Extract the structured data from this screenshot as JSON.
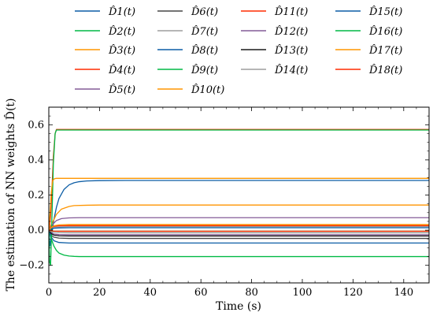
{
  "chart_data": {
    "type": "line",
    "xlabel": "Time (s)",
    "ylabel": "The estimation of NN weights D̂(t)",
    "xlim": [
      0,
      150
    ],
    "ylim": [
      -0.3,
      0.7
    ],
    "xticks": [
      0,
      20,
      40,
      60,
      80,
      100,
      120,
      140
    ],
    "yticks": [
      -0.2,
      0.0,
      0.2,
      0.4,
      0.6
    ],
    "xtick_labels": [
      "0",
      "20",
      "40",
      "60",
      "80",
      "100",
      "120",
      "140"
    ],
    "ytick_labels": [
      "−0.2",
      "0.0",
      "0.2",
      "0.4",
      "0.6"
    ],
    "grid": false,
    "legend_position": "top",
    "series": [
      {
        "name": "D̂1(t)",
        "color": "#0c5da5",
        "x": [
          0,
          0.5,
          1,
          2,
          3,
          4,
          6,
          8,
          10,
          12,
          15,
          20,
          30,
          50,
          150
        ],
        "y": [
          0,
          -0.09,
          -0.04,
          0.06,
          0.13,
          0.18,
          0.232,
          0.258,
          0.27,
          0.276,
          0.28,
          0.282,
          0.283,
          0.283,
          0.283
        ]
      },
      {
        "name": "D̂2(t)",
        "color": "#00b945",
        "x": [
          0,
          1,
          2,
          3,
          4,
          6,
          8,
          10,
          12,
          15,
          20,
          150
        ],
        "y": [
          0,
          -0.05,
          -0.09,
          -0.115,
          -0.13,
          -0.142,
          -0.147,
          -0.149,
          -0.15,
          -0.15,
          -0.15,
          -0.15
        ]
      },
      {
        "name": "D̂3(t)",
        "color": "#ff9500",
        "x": [
          0,
          1,
          2,
          3,
          5,
          8,
          10,
          15,
          20,
          150
        ],
        "y": [
          0,
          0.03,
          0.06,
          0.09,
          0.12,
          0.135,
          0.14,
          0.142,
          0.143,
          0.143
        ]
      },
      {
        "name": "D̂4(t)",
        "color": "#ff2c00",
        "x": [
          0,
          0.3,
          0.7,
          1.2,
          1.8,
          2.5,
          3,
          150
        ],
        "y": [
          0,
          0.02,
          0.08,
          0.22,
          0.42,
          0.55,
          0.573,
          0.573
        ]
      },
      {
        "name": "D̂5(t)",
        "color": "#845b97",
        "x": [
          0,
          1,
          2,
          3,
          5,
          8,
          12,
          150
        ],
        "y": [
          0,
          0.02,
          0.04,
          0.055,
          0.066,
          0.07,
          0.071,
          0.071
        ]
      },
      {
        "name": "D̂6(t)",
        "color": "#474747",
        "x": [
          0,
          1,
          2,
          4,
          8,
          150
        ],
        "y": [
          0,
          -0.03,
          -0.04,
          -0.045,
          -0.047,
          -0.047
        ]
      },
      {
        "name": "D̂7(t)",
        "color": "#9e9e9e",
        "x": [
          0,
          1,
          2,
          4,
          8,
          150
        ],
        "y": [
          0,
          0.01,
          0.016,
          0.019,
          0.02,
          0.02
        ]
      },
      {
        "name": "D̂8(t)",
        "color": "#0c5da5",
        "x": [
          0,
          1,
          2,
          4,
          8,
          150
        ],
        "y": [
          0,
          -0.04,
          -0.06,
          -0.07,
          -0.073,
          -0.073
        ]
      },
      {
        "name": "D̂9(t)",
        "color": "#00b945",
        "x": [
          0,
          0.3,
          0.7,
          1.2,
          1.8,
          2.5,
          3,
          150
        ],
        "y": [
          0,
          -0.18,
          -0.2,
          0.05,
          0.38,
          0.55,
          0.57,
          0.57
        ]
      },
      {
        "name": "D̂10(t)",
        "color": "#ff9500",
        "x": [
          0,
          0.5,
          1,
          1.5,
          2.2,
          3,
          150
        ],
        "y": [
          0,
          0.1,
          0.22,
          0.28,
          0.293,
          0.295,
          0.295
        ]
      },
      {
        "name": "D̂11(t)",
        "color": "#ff2c00",
        "x": [
          0,
          1,
          2,
          4,
          8,
          150
        ],
        "y": [
          0,
          0.015,
          0.022,
          0.025,
          0.026,
          0.026
        ]
      },
      {
        "name": "D̂12(t)",
        "color": "#845b97",
        "x": [
          0,
          1,
          2,
          4,
          8,
          150
        ],
        "y": [
          0,
          -0.015,
          -0.022,
          -0.025,
          -0.026,
          -0.026
        ]
      },
      {
        "name": "D̂13(t)",
        "color": "#1a1a1a",
        "x": [
          0,
          1,
          2,
          4,
          8,
          150
        ],
        "y": [
          0,
          -0.02,
          -0.028,
          -0.032,
          -0.033,
          -0.033
        ]
      },
      {
        "name": "D̂14(t)",
        "color": "#9e9e9e",
        "x": [
          0,
          1,
          2,
          4,
          8,
          150
        ],
        "y": [
          0,
          -0.008,
          -0.012,
          -0.014,
          -0.015,
          -0.015
        ]
      },
      {
        "name": "D̂15(t)",
        "color": "#0c5da5",
        "x": [
          0,
          1,
          2,
          4,
          8,
          150
        ],
        "y": [
          0,
          0.008,
          0.011,
          0.013,
          0.014,
          0.014
        ]
      },
      {
        "name": "D̂16(t)",
        "color": "#00b945",
        "x": [
          0,
          1,
          2,
          4,
          8,
          150
        ],
        "y": [
          0,
          -0.003,
          -0.005,
          -0.006,
          -0.006,
          -0.006
        ]
      },
      {
        "name": "D̂17(t)",
        "color": "#ff9500",
        "x": [
          0,
          1,
          2,
          4,
          8,
          150
        ],
        "y": [
          0,
          0.015,
          0.025,
          0.03,
          0.032,
          0.032
        ]
      },
      {
        "name": "D̂18(t)",
        "color": "#ff2c00",
        "x": [
          0,
          1,
          2,
          4,
          8,
          150
        ],
        "y": [
          0,
          -0.003,
          -0.005,
          -0.006,
          -0.006,
          -0.006
        ]
      }
    ]
  }
}
